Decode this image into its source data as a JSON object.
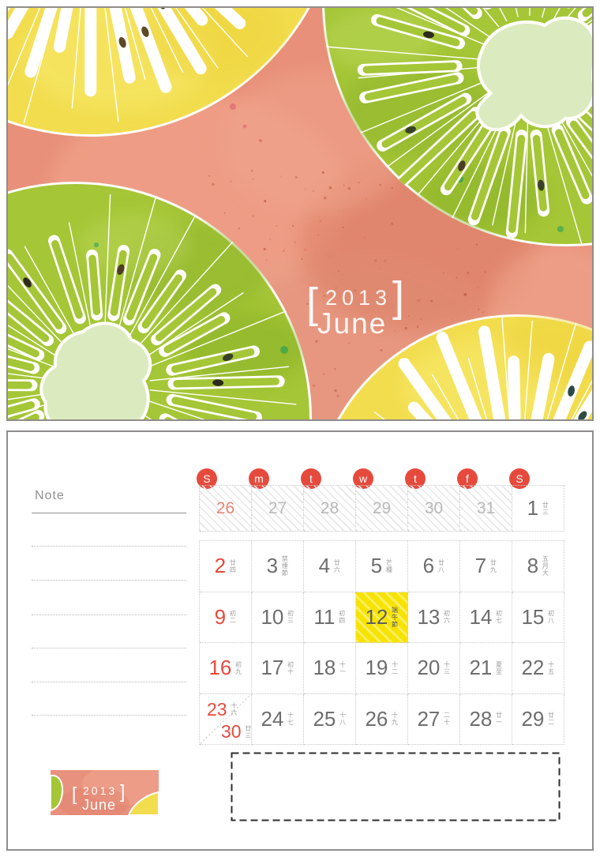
{
  "title": {
    "bracket_left": "[",
    "year": "2013",
    "bracket_right": "]",
    "month": "June"
  },
  "logo": {
    "bracket_left": "[",
    "year": "2013",
    "bracket_right": "]",
    "month": "June"
  },
  "note": {
    "label": "Note"
  },
  "calendar": {
    "weekdays": [
      "S",
      "m",
      "t",
      "w",
      "t",
      "f",
      "S"
    ],
    "leading": {
      "cells": [
        {
          "day": "26"
        },
        {
          "day": "27"
        },
        {
          "day": "28"
        },
        {
          "day": "29"
        },
        {
          "day": "30"
        },
        {
          "day": "31"
        },
        {
          "day": "1",
          "lunar": "廿三"
        }
      ]
    },
    "rows": [
      {
        "cells": [
          {
            "day": "2",
            "lunar": "廿四"
          },
          {
            "day": "3",
            "lunar": "禁煙節"
          },
          {
            "day": "4",
            "lunar": "廿六"
          },
          {
            "day": "5",
            "lunar": "芒種"
          },
          {
            "day": "6",
            "lunar": "廿八"
          },
          {
            "day": "7",
            "lunar": "廿九"
          },
          {
            "day": "8",
            "lunar": "五月大"
          }
        ]
      },
      {
        "cells": [
          {
            "day": "9",
            "lunar": "初二"
          },
          {
            "day": "10",
            "lunar": "初三"
          },
          {
            "day": "11",
            "lunar": "初四"
          },
          {
            "day": "12",
            "lunar": "端午節"
          },
          {
            "day": "13",
            "lunar": "初六"
          },
          {
            "day": "14",
            "lunar": "初七"
          },
          {
            "day": "15",
            "lunar": "初八"
          }
        ]
      },
      {
        "cells": [
          {
            "day": "16",
            "lunar": "初九"
          },
          {
            "day": "17",
            "lunar": "初十"
          },
          {
            "day": "18",
            "lunar": "十一"
          },
          {
            "day": "19",
            "lunar": "十二"
          },
          {
            "day": "20",
            "lunar": "十三"
          },
          {
            "day": "21",
            "lunar": "夏至"
          },
          {
            "day": "22",
            "lunar": "十五"
          }
        ]
      },
      {
        "cells": [
          {
            "day": "23",
            "lunar": "十六",
            "day2": "30",
            "lunar2": "廿三"
          },
          {
            "day": "24",
            "lunar": "十七"
          },
          {
            "day": "25",
            "lunar": "十八"
          },
          {
            "day": "26",
            "lunar": "十九"
          },
          {
            "day": "27",
            "lunar": "二十"
          },
          {
            "day": "28",
            "lunar": "廿一"
          },
          {
            "day": "29",
            "lunar": "廿二"
          }
        ]
      }
    ],
    "festival_day": "12",
    "festival_label": "端午節"
  },
  "colors": {
    "background_pink": "#e8907a",
    "kiwi_green": "#a5c636",
    "kiwi_yellow": "#f2dd4e",
    "kiwi_core": "#dcebbf",
    "accent_red": "#e64a3d",
    "highlight_yellow": "#f7e300"
  }
}
